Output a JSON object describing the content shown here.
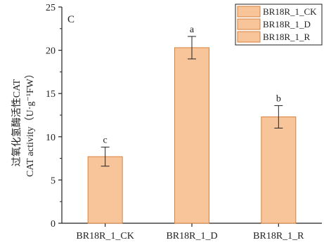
{
  "chart_data": {
    "type": "bar",
    "panel_label": "C",
    "categories": [
      "BR18R_1_CK",
      "BR18R_1_D",
      "BR18R_1_R"
    ],
    "values": [
      7.7,
      20.3,
      12.3
    ],
    "errors": [
      1.1,
      1.3,
      1.3
    ],
    "significance_letters": [
      "c",
      "a",
      "b"
    ],
    "ylabel_line1": "过氧化氢酶活性CAT",
    "ylabel_line2": "CAT activity（U·g⁻¹FW）",
    "ylim": [
      0,
      25
    ],
    "yticks": [
      0,
      5,
      10,
      15,
      20,
      25
    ],
    "bar_color": "#F8C49A",
    "bar_edge_color": "#D9823C",
    "legend_placement": "top-right",
    "legend": [
      "BR18R_1_CK",
      "BR18R_1_D",
      "BR18R_1_R"
    ]
  }
}
